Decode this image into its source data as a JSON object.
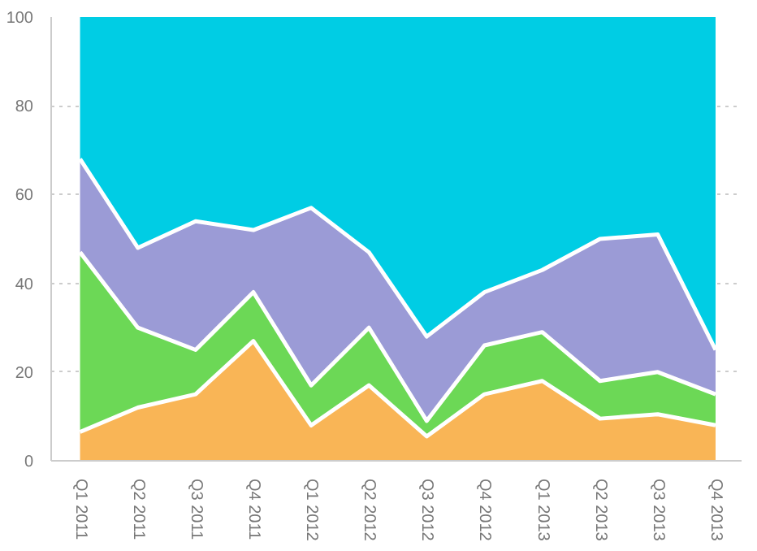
{
  "chart_data": {
    "type": "area",
    "stacked": true,
    "categories": [
      "Q1 2011",
      "Q2 2011",
      "Q3 2011",
      "Q4 2011",
      "Q1 2012",
      "Q2 2012",
      "Q3 2012",
      "Q4 2012",
      "Q1 2013",
      "Q2 2013",
      "Q3 2013",
      "Q4 2013"
    ],
    "series": [
      {
        "color": "#f9b556",
        "values": [
          6.5,
          12,
          15,
          27,
          8,
          17,
          5.5,
          15,
          18,
          9.5,
          10.5,
          8
        ]
      },
      {
        "color": "#6cd856",
        "values": [
          40.5,
          18,
          10,
          11,
          9,
          13,
          3.5,
          11,
          11,
          8.5,
          9.5,
          7
        ]
      },
      {
        "color": "#9b9bd6",
        "values": [
          21,
          18,
          29,
          14,
          40,
          17,
          19,
          12,
          14,
          32,
          31,
          10
        ]
      },
      {
        "color": "#00cde4",
        "values": [
          32,
          52,
          46,
          48,
          43,
          53,
          72,
          62,
          57,
          50,
          49,
          75
        ]
      }
    ],
    "ylim": [
      0,
      100
    ],
    "yticks": [
      0,
      20,
      40,
      60,
      80,
      100
    ],
    "grid": "y"
  }
}
